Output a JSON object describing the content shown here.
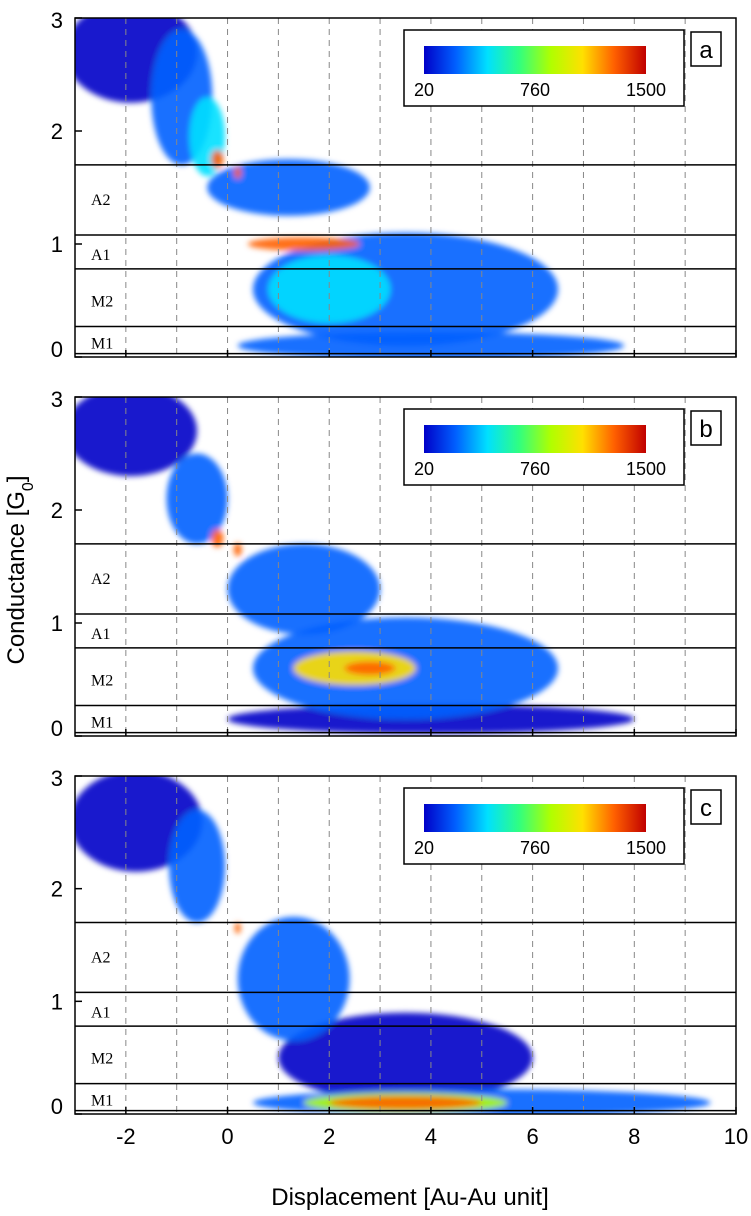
{
  "chart_data": {
    "type": "heatmap",
    "xlabel": "Displacement [Au-Au unit]",
    "ylabel": "Conductance [G",
    "ylabel_sub": "0",
    "ylabel_close": "]",
    "xlim": [
      -3,
      10
    ],
    "ylim": [
      0,
      3
    ],
    "xticks": [
      "-2",
      "0",
      "2",
      "4",
      "6",
      "8",
      "10"
    ],
    "xtick_values": [
      -2,
      0,
      2,
      4,
      6,
      8,
      10
    ],
    "yticks": [
      "0",
      "1",
      "2",
      "3"
    ],
    "ytick_values": [
      0,
      1,
      2,
      3
    ],
    "dashed_gridlines_x": [
      -2,
      -1,
      0,
      1,
      2,
      3,
      4,
      5,
      6,
      7,
      8,
      9
    ],
    "colorbar": {
      "ticks": [
        "20",
        "760",
        "1500"
      ],
      "values": [
        20,
        760,
        1500
      ],
      "colors": [
        "#0000c8",
        "#0060ff",
        "#00e0ff",
        "#30ff80",
        "#b0ff00",
        "#ffe000",
        "#ff6000",
        "#c00000"
      ]
    },
    "regions": [
      {
        "name": "A2",
        "y": 1.4
      },
      {
        "name": "A1",
        "y": 0.91
      },
      {
        "name": "M2",
        "y": 0.5
      },
      {
        "name": "M1",
        "y": 0.13
      }
    ],
    "boundaries": [
      1.7,
      1.08,
      0.78,
      0.27,
      0.03
    ],
    "panels": [
      {
        "label": "a",
        "blobs": [
          {
            "x": -1.9,
            "y": 2.7,
            "rx": 1.3,
            "ry": 0.45,
            "level": 0.12
          },
          {
            "x": -0.9,
            "y": 2.3,
            "rx": 0.6,
            "ry": 0.6,
            "level": 0.2
          },
          {
            "x": -0.4,
            "y": 1.95,
            "rx": 0.35,
            "ry": 0.35,
            "level": 0.4
          },
          {
            "x": -0.2,
            "y": 1.75,
            "rx": 0.12,
            "ry": 0.08,
            "level": 0.95
          },
          {
            "x": 0.2,
            "y": 1.63,
            "rx": 0.07,
            "ry": 0.05,
            "level": 0.95
          },
          {
            "x": 1.2,
            "y": 1.5,
            "rx": 1.6,
            "ry": 0.25,
            "level": 0.2
          },
          {
            "x": 3.5,
            "y": 0.6,
            "rx": 3.0,
            "ry": 0.5,
            "level": 0.2
          },
          {
            "x": 4.0,
            "y": 0.1,
            "rx": 3.8,
            "ry": 0.12,
            "level": 0.15
          },
          {
            "x": 1.5,
            "y": 1.0,
            "rx": 1.1,
            "ry": 0.06,
            "level": 0.99
          },
          {
            "x": 2.0,
            "y": 0.6,
            "rx": 1.2,
            "ry": 0.3,
            "level": 0.3
          }
        ]
      },
      {
        "label": "b",
        "blobs": [
          {
            "x": -1.9,
            "y": 2.7,
            "rx": 1.3,
            "ry": 0.4,
            "level": 0.12
          },
          {
            "x": -0.6,
            "y": 2.1,
            "rx": 0.6,
            "ry": 0.4,
            "level": 0.25
          },
          {
            "x": -0.2,
            "y": 1.75,
            "rx": 0.12,
            "ry": 0.08,
            "level": 0.95
          },
          {
            "x": 0.2,
            "y": 1.65,
            "rx": 0.08,
            "ry": 0.06,
            "level": 0.98
          },
          {
            "x": 1.5,
            "y": 1.3,
            "rx": 1.5,
            "ry": 0.4,
            "level": 0.2
          },
          {
            "x": 3.5,
            "y": 0.6,
            "rx": 3.0,
            "ry": 0.45,
            "level": 0.2
          },
          {
            "x": 4.0,
            "y": 0.15,
            "rx": 4.0,
            "ry": 0.13,
            "level": 0.12
          },
          {
            "x": 2.5,
            "y": 0.6,
            "rx": 1.2,
            "ry": 0.15,
            "level": 0.75
          },
          {
            "x": 2.8,
            "y": 0.6,
            "rx": 0.5,
            "ry": 0.06,
            "level": 0.99
          }
        ]
      },
      {
        "label": "c",
        "blobs": [
          {
            "x": -1.8,
            "y": 2.6,
            "rx": 1.3,
            "ry": 0.45,
            "level": 0.12
          },
          {
            "x": -0.6,
            "y": 2.2,
            "rx": 0.55,
            "ry": 0.5,
            "level": 0.22
          },
          {
            "x": 1.3,
            "y": 1.2,
            "rx": 1.1,
            "ry": 0.55,
            "level": 0.25
          },
          {
            "x": 3.5,
            "y": 0.5,
            "rx": 2.5,
            "ry": 0.4,
            "level": 0.12
          },
          {
            "x": 5.0,
            "y": 0.1,
            "rx": 4.5,
            "ry": 0.12,
            "level": 0.15
          },
          {
            "x": 3.5,
            "y": 0.1,
            "rx": 2.0,
            "ry": 0.09,
            "level": 0.6
          },
          {
            "x": 3.5,
            "y": 0.1,
            "rx": 1.5,
            "ry": 0.06,
            "level": 0.99
          },
          {
            "x": 0.2,
            "y": 1.65,
            "rx": 0.06,
            "ry": 0.05,
            "level": 0.9
          }
        ]
      }
    ]
  }
}
